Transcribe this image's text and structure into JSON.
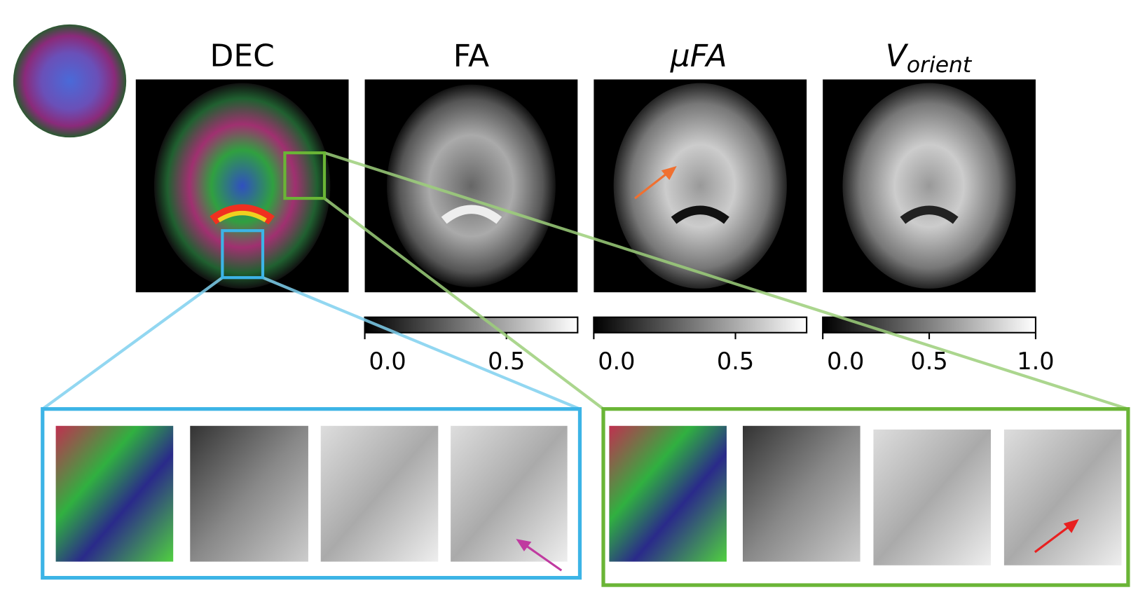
{
  "panels": [
    {
      "title": "DEC"
    },
    {
      "title": "FA"
    },
    {
      "title": "μFA"
    },
    {
      "title": {
        "main": "V",
        "subscript": "orient"
      }
    }
  ],
  "colorbars": [
    {
      "ticks": [
        "0.0",
        "0.5"
      ]
    },
    {
      "ticks": [
        "0.0",
        "0.5"
      ]
    },
    {
      "ticks": [
        "0.0",
        "0.5",
        "1.0"
      ]
    }
  ]
}
